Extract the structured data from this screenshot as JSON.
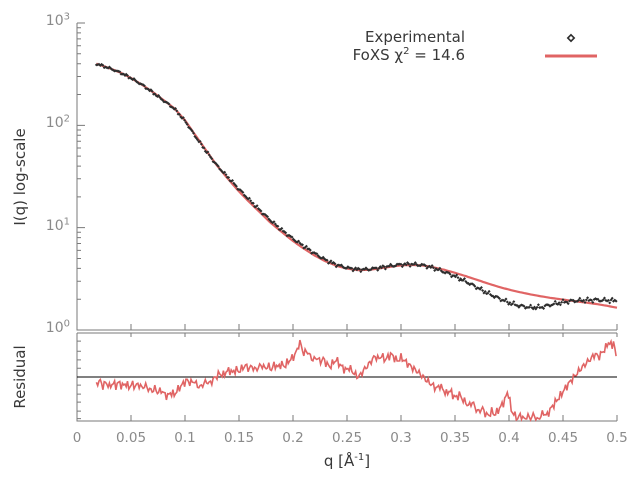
{
  "figure": {
    "legend": {
      "experimental_label": "Experimental",
      "foxs_label_pre": "FoXS χ",
      "foxs_label_sup": "2",
      "foxs_label_post": " = 14.6"
    },
    "axes": {
      "main_ylabel": "I(q) log-scale",
      "residual_ylabel": "Residual",
      "xlabel_pre": "q [Å",
      "xlabel_sup": "-1",
      "xlabel_post": "]"
    },
    "colors": {
      "fit_line": "#e06464",
      "data_points": "#2e2e2e",
      "axis_border": "#7a7a7a",
      "tick_text": "#8a8a8a",
      "label_text": "#383838",
      "reference_line": "#000000",
      "background": "#ffffff"
    }
  },
  "chart_data": [
    {
      "panel": "main",
      "type": "scatter+line",
      "xlabel": "q [Å-1]",
      "ylabel": "I(q) log-scale",
      "x_scale": "linear",
      "y_scale": "log",
      "xlim": [
        0,
        0.5
      ],
      "ylim": [
        1,
        1000
      ],
      "x_tick_values": [
        0,
        0.05,
        0.1,
        0.15,
        0.2,
        0.25,
        0.3,
        0.35,
        0.4,
        0.45,
        0.5
      ],
      "x_tick_labels": [
        "0",
        "0.05",
        "0.1",
        "0.15",
        "0.2",
        "0.25",
        "0.3",
        "0.35",
        "0.4",
        "0.45",
        "0.5"
      ],
      "y_tick_exponents": [
        0,
        1,
        2,
        3
      ],
      "legend_position": "top-right",
      "series": [
        {
          "name": "Experimental",
          "style": "scatter",
          "marker": "diamond",
          "color": "#2e2e2e",
          "q_range": [
            0.018,
            0.5
          ],
          "anchors": [
            [
              0.018,
              400
            ],
            [
              0.03,
              362
            ],
            [
              0.04,
              328
            ],
            [
              0.05,
              290
            ],
            [
              0.06,
              250
            ],
            [
              0.07,
              210
            ],
            [
              0.08,
              175
            ],
            [
              0.09,
              146
            ],
            [
              0.1,
              110
            ],
            [
              0.11,
              77
            ],
            [
              0.12,
              55
            ],
            [
              0.13,
              40
            ],
            [
              0.14,
              31
            ],
            [
              0.15,
              23.8
            ],
            [
              0.16,
              18.5
            ],
            [
              0.17,
              14.6
            ],
            [
              0.18,
              11.6
            ],
            [
              0.19,
              9.4
            ],
            [
              0.2,
              7.8
            ],
            [
              0.21,
              6.6
            ],
            [
              0.22,
              5.6
            ],
            [
              0.23,
              4.85
            ],
            [
              0.24,
              4.35
            ],
            [
              0.25,
              4.05
            ],
            [
              0.26,
              3.9
            ],
            [
              0.27,
              3.92
            ],
            [
              0.28,
              4.05
            ],
            [
              0.29,
              4.22
            ],
            [
              0.3,
              4.36
            ],
            [
              0.31,
              4.4
            ],
            [
              0.32,
              4.3
            ],
            [
              0.33,
              4.05
            ],
            [
              0.34,
              3.7
            ],
            [
              0.35,
              3.35
            ],
            [
              0.36,
              2.98
            ],
            [
              0.37,
              2.62
            ],
            [
              0.38,
              2.3
            ],
            [
              0.39,
              2.05
            ],
            [
              0.4,
              1.85
            ],
            [
              0.41,
              1.72
            ],
            [
              0.42,
              1.66
            ],
            [
              0.43,
              1.67
            ],
            [
              0.44,
              1.78
            ],
            [
              0.45,
              1.87
            ],
            [
              0.46,
              1.93
            ],
            [
              0.47,
              1.95
            ],
            [
              0.48,
              1.97
            ],
            [
              0.49,
              1.95
            ],
            [
              0.5,
              1.93
            ]
          ]
        },
        {
          "name": "FoXS χ2 = 14.6",
          "chi_squared": 14.6,
          "style": "line",
          "color": "#e06464",
          "q_range": [
            0.018,
            0.5
          ],
          "anchors": [
            [
              0.018,
              400
            ],
            [
              0.03,
              362
            ],
            [
              0.04,
              328
            ],
            [
              0.05,
              290
            ],
            [
              0.06,
              250
            ],
            [
              0.07,
              212
            ],
            [
              0.08,
              177
            ],
            [
              0.09,
              147
            ],
            [
              0.1,
              112
            ],
            [
              0.11,
              79
            ],
            [
              0.12,
              56
            ],
            [
              0.13,
              40
            ],
            [
              0.14,
              29.8
            ],
            [
              0.15,
              22.6
            ],
            [
              0.16,
              17.6
            ],
            [
              0.17,
              13.9
            ],
            [
              0.18,
              11.0
            ],
            [
              0.19,
              9.0
            ],
            [
              0.2,
              7.4
            ],
            [
              0.21,
              6.25
            ],
            [
              0.22,
              5.35
            ],
            [
              0.23,
              4.7
            ],
            [
              0.24,
              4.25
            ],
            [
              0.25,
              3.98
            ],
            [
              0.26,
              3.85
            ],
            [
              0.27,
              3.87
            ],
            [
              0.28,
              4.0
            ],
            [
              0.29,
              4.15
            ],
            [
              0.3,
              4.28
            ],
            [
              0.31,
              4.33
            ],
            [
              0.32,
              4.28
            ],
            [
              0.33,
              4.1
            ],
            [
              0.34,
              3.88
            ],
            [
              0.35,
              3.62
            ],
            [
              0.36,
              3.36
            ],
            [
              0.37,
              3.1
            ],
            [
              0.38,
              2.86
            ],
            [
              0.39,
              2.65
            ],
            [
              0.4,
              2.48
            ],
            [
              0.41,
              2.34
            ],
            [
              0.42,
              2.23
            ],
            [
              0.43,
              2.13
            ],
            [
              0.44,
              2.05
            ],
            [
              0.45,
              1.98
            ],
            [
              0.46,
              1.92
            ],
            [
              0.47,
              1.86
            ],
            [
              0.48,
              1.8
            ],
            [
              0.49,
              1.73
            ],
            [
              0.5,
              1.65
            ]
          ]
        }
      ]
    },
    {
      "panel": "residual",
      "type": "line",
      "ylabel": "Residual",
      "x_scale": "linear",
      "y_scale": "log",
      "xlim": [
        0,
        0.5
      ],
      "ylim": [
        0.56,
        1.78
      ],
      "reference_value": 1.0,
      "color": "#e06464",
      "left_tick_values": [
        1.6,
        1.4,
        1.25,
        1.12,
        1.0,
        0.9,
        0.8,
        0.72,
        0.64,
        0.58
      ],
      "points": [
        [
          0.018,
          0.92
        ],
        [
          0.021,
          0.97
        ],
        [
          0.024,
          0.9
        ],
        [
          0.027,
          0.95
        ],
        [
          0.03,
          0.89
        ],
        [
          0.033,
          0.94
        ],
        [
          0.036,
          0.91
        ],
        [
          0.039,
          0.95
        ],
        [
          0.042,
          0.9
        ],
        [
          0.045,
          0.94
        ],
        [
          0.048,
          0.89
        ],
        [
          0.051,
          0.93
        ],
        [
          0.054,
          0.9
        ],
        [
          0.057,
          0.93
        ],
        [
          0.06,
          0.88
        ],
        [
          0.063,
          0.91
        ],
        [
          0.066,
          0.87
        ],
        [
          0.069,
          0.84
        ],
        [
          0.072,
          0.87
        ],
        [
          0.075,
          0.82
        ],
        [
          0.078,
          0.85
        ],
        [
          0.081,
          0.8
        ],
        [
          0.084,
          0.78
        ],
        [
          0.087,
          0.82
        ],
        [
          0.09,
          0.79
        ],
        [
          0.093,
          0.84
        ],
        [
          0.096,
          0.88
        ],
        [
          0.099,
          0.92
        ],
        [
          0.102,
          0.95
        ],
        [
          0.105,
          0.91
        ],
        [
          0.108,
          0.94
        ],
        [
          0.111,
          0.89
        ],
        [
          0.114,
          0.86
        ],
        [
          0.117,
          0.9
        ],
        [
          0.12,
          0.93
        ],
        [
          0.123,
          0.9
        ],
        [
          0.126,
          0.95
        ],
        [
          0.129,
          0.99
        ],
        [
          0.132,
          1.03
        ],
        [
          0.135,
          1.0
        ],
        [
          0.138,
          1.05
        ],
        [
          0.141,
          1.08
        ],
        [
          0.144,
          1.04
        ],
        [
          0.147,
          1.09
        ],
        [
          0.15,
          1.06
        ],
        [
          0.153,
          1.11
        ],
        [
          0.156,
          1.15
        ],
        [
          0.159,
          1.1
        ],
        [
          0.162,
          1.14
        ],
        [
          0.165,
          1.09
        ],
        [
          0.168,
          1.13
        ],
        [
          0.171,
          1.17
        ],
        [
          0.174,
          1.12
        ],
        [
          0.177,
          1.16
        ],
        [
          0.18,
          1.11
        ],
        [
          0.183,
          1.19
        ],
        [
          0.186,
          1.14
        ],
        [
          0.189,
          1.2
        ],
        [
          0.192,
          1.16
        ],
        [
          0.195,
          1.23
        ],
        [
          0.198,
          1.28
        ],
        [
          0.201,
          1.33
        ],
        [
          0.204,
          1.45
        ],
        [
          0.206,
          1.62
        ],
        [
          0.208,
          1.5
        ],
        [
          0.21,
          1.38
        ],
        [
          0.213,
          1.44
        ],
        [
          0.216,
          1.33
        ],
        [
          0.219,
          1.27
        ],
        [
          0.222,
          1.32
        ],
        [
          0.225,
          1.24
        ],
        [
          0.228,
          1.29
        ],
        [
          0.231,
          1.21
        ],
        [
          0.234,
          1.16
        ],
        [
          0.237,
          1.22
        ],
        [
          0.24,
          1.27
        ],
        [
          0.243,
          1.2
        ],
        [
          0.246,
          1.14
        ],
        [
          0.249,
          1.1
        ],
        [
          0.252,
          1.14
        ],
        [
          0.255,
          1.08
        ],
        [
          0.258,
          1.03
        ],
        [
          0.261,
          1.0
        ],
        [
          0.264,
          1.06
        ],
        [
          0.267,
          1.12
        ],
        [
          0.27,
          1.17
        ],
        [
          0.273,
          1.24
        ],
        [
          0.276,
          1.3
        ],
        [
          0.279,
          1.25
        ],
        [
          0.282,
          1.31
        ],
        [
          0.285,
          1.23
        ],
        [
          0.288,
          1.28
        ],
        [
          0.291,
          1.33
        ],
        [
          0.294,
          1.26
        ],
        [
          0.297,
          1.21
        ],
        [
          0.3,
          1.27
        ],
        [
          0.303,
          1.22
        ],
        [
          0.306,
          1.17
        ],
        [
          0.309,
          1.13
        ],
        [
          0.312,
          1.09
        ],
        [
          0.315,
          1.06
        ],
        [
          0.318,
          1.02
        ],
        [
          0.321,
          0.98
        ],
        [
          0.324,
          0.94
        ],
        [
          0.327,
          0.91
        ],
        [
          0.33,
          0.88
        ],
        [
          0.333,
          0.85
        ],
        [
          0.336,
          0.89
        ],
        [
          0.339,
          0.84
        ],
        [
          0.342,
          0.8
        ],
        [
          0.345,
          0.84
        ],
        [
          0.348,
          0.79
        ],
        [
          0.351,
          0.76
        ],
        [
          0.354,
          0.8
        ],
        [
          0.357,
          0.75
        ],
        [
          0.36,
          0.72
        ],
        [
          0.363,
          0.69
        ],
        [
          0.366,
          0.73
        ],
        [
          0.369,
          0.67
        ],
        [
          0.372,
          0.64
        ],
        [
          0.375,
          0.68
        ],
        [
          0.378,
          0.63
        ],
        [
          0.381,
          0.61
        ],
        [
          0.384,
          0.65
        ],
        [
          0.387,
          0.62
        ],
        [
          0.39,
          0.66
        ],
        [
          0.393,
          0.7
        ],
        [
          0.396,
          0.75
        ],
        [
          0.399,
          0.85
        ],
        [
          0.402,
          0.66
        ],
        [
          0.405,
          0.62
        ],
        [
          0.408,
          0.59
        ],
        [
          0.411,
          0.62
        ],
        [
          0.414,
          0.58
        ],
        [
          0.417,
          0.61
        ],
        [
          0.42,
          0.58
        ],
        [
          0.423,
          0.62
        ],
        [
          0.426,
          0.57
        ],
        [
          0.429,
          0.6
        ],
        [
          0.432,
          0.63
        ],
        [
          0.435,
          0.6
        ],
        [
          0.438,
          0.65
        ],
        [
          0.441,
          0.69
        ],
        [
          0.444,
          0.73
        ],
        [
          0.447,
          0.77
        ],
        [
          0.45,
          0.82
        ],
        [
          0.453,
          0.87
        ],
        [
          0.456,
          0.92
        ],
        [
          0.459,
          0.97
        ],
        [
          0.462,
          1.02
        ],
        [
          0.465,
          1.07
        ],
        [
          0.468,
          1.12
        ],
        [
          0.471,
          1.17
        ],
        [
          0.474,
          1.22
        ],
        [
          0.477,
          1.27
        ],
        [
          0.48,
          1.33
        ],
        [
          0.483,
          1.27
        ],
        [
          0.486,
          1.35
        ],
        [
          0.489,
          1.42
        ],
        [
          0.492,
          1.55
        ],
        [
          0.495,
          1.48
        ],
        [
          0.497,
          1.56
        ],
        [
          0.499,
          1.3
        ],
        [
          0.5,
          1.14
        ]
      ]
    }
  ]
}
